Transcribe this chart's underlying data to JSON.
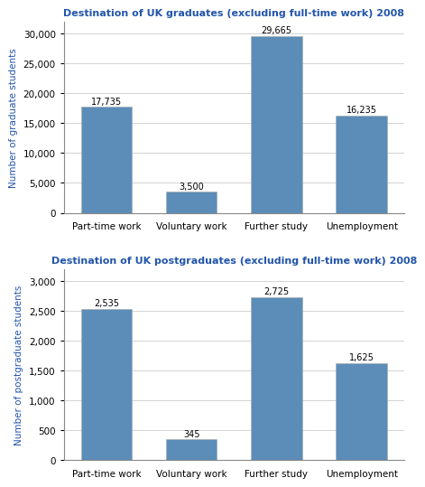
{
  "grad_title": "Destination of UK graduates (excluding full-time work) 2008",
  "postgrad_title": "Destination of UK postgraduates (excluding full-time work) 2008",
  "categories": [
    "Part-time work",
    "Voluntary work",
    "Further study",
    "Unemployment"
  ],
  "grad_values": [
    17735,
    3500,
    29665,
    16235
  ],
  "grad_labels": [
    "17,735",
    "3,500",
    "29,665",
    "16,235"
  ],
  "postgrad_values": [
    2535,
    345,
    2725,
    1625
  ],
  "postgrad_labels": [
    "2,535",
    "345",
    "2,725",
    "1,625"
  ],
  "bar_color": "#5B8DB8",
  "grad_ylabel": "Number of graduate students",
  "postgrad_ylabel": "Number of postgraduate students",
  "grad_ylim": [
    0,
    32000
  ],
  "grad_yticks": [
    0,
    5000,
    10000,
    15000,
    20000,
    25000,
    30000
  ],
  "postgrad_ylim": [
    0,
    3200
  ],
  "postgrad_yticks": [
    0,
    500,
    1000,
    1500,
    2000,
    2500,
    3000
  ],
  "title_color": "#2255AA",
  "ylabel_color": "#2255AA",
  "title_fontsize": 8.0,
  "ylabel_fontsize": 7.5,
  "tick_fontsize": 7.5,
  "bar_label_fontsize": 7.0,
  "background_color": "#FFFFFF",
  "grid_color": "#CCCCCC",
  "spine_color": "#888888"
}
